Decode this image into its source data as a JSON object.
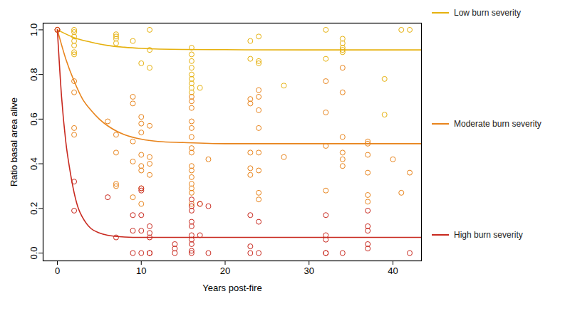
{
  "chart_data": {
    "type": "scatter",
    "x_label": "Years post-fire",
    "y_label": "Ratio basal area alive",
    "xlim": [
      -1.7,
      43.4
    ],
    "ylim": [
      -0.035,
      1.03
    ],
    "xticks": [
      0,
      10,
      20,
      30,
      40
    ],
    "yticks": [
      {
        "value": 0,
        "label": "0.0"
      },
      {
        "value": 0.2,
        "label": "0.2"
      },
      {
        "value": 0.4,
        "label": "0.4"
      },
      {
        "value": 0.6,
        "label": "0.6"
      },
      {
        "value": 0.8,
        "label": "0.8"
      },
      {
        "value": 1,
        "label": "1.0"
      }
    ],
    "legend": "right",
    "marker": "open circle",
    "series": [
      {
        "name": "Low burn severity",
        "color": "#e6b10e",
        "x": [
          0,
          2,
          2,
          2,
          2,
          2,
          2,
          2,
          7,
          7,
          7,
          7,
          9,
          10,
          11,
          11,
          11,
          16,
          16,
          16,
          16,
          16,
          16,
          16,
          16,
          16,
          17,
          23,
          23,
          24,
          24,
          24,
          27,
          32,
          32,
          34,
          34,
          34,
          34,
          34,
          39,
          39,
          41,
          42
        ],
        "values": [
          1,
          1,
          0.99,
          0.97,
          0.95,
          0.93,
          0.9,
          0.89,
          0.98,
          0.97,
          0.96,
          0.94,
          0.95,
          0.85,
          1,
          0.91,
          0.83,
          0.92,
          0.89,
          0.86,
          0.83,
          0.8,
          0.78,
          0.76,
          0.74,
          0.72,
          0.74,
          0.95,
          0.87,
          0.97,
          0.86,
          0.85,
          0.75,
          1,
          0.87,
          0.96,
          0.94,
          0.92,
          0.91,
          0.9,
          0.78,
          0.62,
          1,
          1
        ],
        "curve": {
          "x": [
            0,
            2,
            4,
            6,
            8,
            10,
            15,
            20,
            30,
            43.4
          ],
          "values": [
            1,
            0.965,
            0.945,
            0.93,
            0.922,
            0.917,
            0.912,
            0.911,
            0.91,
            0.91
          ]
        }
      },
      {
        "name": "Moderate burn severity",
        "color": "#e8841c",
        "x": [
          0,
          2,
          2,
          2,
          2,
          6,
          7,
          7,
          7,
          7,
          9,
          9,
          9,
          9,
          9,
          10,
          10,
          10,
          10,
          10,
          10,
          10,
          10,
          11,
          11,
          11,
          11,
          16,
          16,
          16,
          16,
          16,
          16,
          16,
          16,
          16,
          16,
          16,
          16,
          16,
          16,
          16,
          17,
          18,
          23,
          23,
          23,
          23,
          23,
          24,
          24,
          24,
          24,
          24,
          24,
          24,
          24,
          27,
          32,
          32,
          32,
          32,
          34,
          34,
          34,
          34,
          34,
          34,
          37,
          37,
          37,
          37,
          37,
          37,
          40,
          41,
          42
        ],
        "values": [
          1,
          0.77,
          0.72,
          0.56,
          0.53,
          0.59,
          0.53,
          0.45,
          0.31,
          0.3,
          0.7,
          0.67,
          0.5,
          0.41,
          0.25,
          0.61,
          0.58,
          0.54,
          0.44,
          0.39,
          0.37,
          0.29,
          0.22,
          0.57,
          0.43,
          0.4,
          0.35,
          0.7,
          0.68,
          0.65,
          0.59,
          0.56,
          0.52,
          0.47,
          0.45,
          0.39,
          0.37,
          0.34,
          0.31,
          0.29,
          0.27,
          0.22,
          0.22,
          0.42,
          0.69,
          0.67,
          0.45,
          0.38,
          0.35,
          0.73,
          0.7,
          0.64,
          0.56,
          0.45,
          0.37,
          0.27,
          0.24,
          0.43,
          0.77,
          0.63,
          0.48,
          0.28,
          0.83,
          0.72,
          0.52,
          0.45,
          0.42,
          0.39,
          0.5,
          0.49,
          0.44,
          0.36,
          0.26,
          0.23,
          0.42,
          0.27,
          0.36
        ],
        "curve": {
          "x": [
            0,
            1,
            2,
            3,
            4,
            5,
            6,
            8,
            10,
            12,
            15,
            20,
            30,
            43.4
          ],
          "values": [
            1,
            0.87,
            0.77,
            0.69,
            0.64,
            0.6,
            0.57,
            0.53,
            0.51,
            0.5,
            0.495,
            0.49,
            0.49,
            0.49
          ]
        }
      },
      {
        "name": "High burn severity",
        "color": "#c8281e",
        "x": [
          0,
          2,
          2,
          6,
          7,
          9,
          9,
          9,
          10,
          10,
          10,
          10,
          10,
          11,
          11,
          11,
          11,
          11,
          14,
          14,
          14,
          16,
          16,
          16,
          16,
          16,
          16,
          16,
          16,
          16,
          16,
          17,
          17,
          18,
          18,
          23,
          23,
          23,
          24,
          24,
          32,
          32,
          32,
          32,
          32,
          34,
          37,
          37,
          37,
          37,
          37,
          42
        ],
        "values": [
          1,
          0.32,
          0.19,
          0.25,
          0.07,
          0.17,
          0.1,
          0,
          0.29,
          0.28,
          0.17,
          0.1,
          0,
          0.12,
          0.09,
          0.07,
          0,
          0,
          0.04,
          0.02,
          0,
          0.24,
          0.21,
          0.19,
          0.14,
          0.12,
          0.08,
          0.06,
          0.04,
          0.01,
          0,
          0.22,
          0.08,
          0.21,
          0,
          0.17,
          0.03,
          0,
          0.14,
          0,
          0.17,
          0.08,
          0.06,
          0,
          0,
          0,
          0.19,
          0.12,
          0.1,
          0.04,
          0.02,
          0
        ],
        "curve": {
          "x": [
            0,
            0.5,
            1,
            1.5,
            2,
            2.5,
            3,
            4,
            5,
            6,
            8,
            10,
            20,
            43.4
          ],
          "values": [
            1,
            0.7,
            0.5,
            0.37,
            0.27,
            0.2,
            0.16,
            0.11,
            0.09,
            0.08,
            0.072,
            0.07,
            0.07,
            0.07
          ]
        }
      }
    ]
  }
}
